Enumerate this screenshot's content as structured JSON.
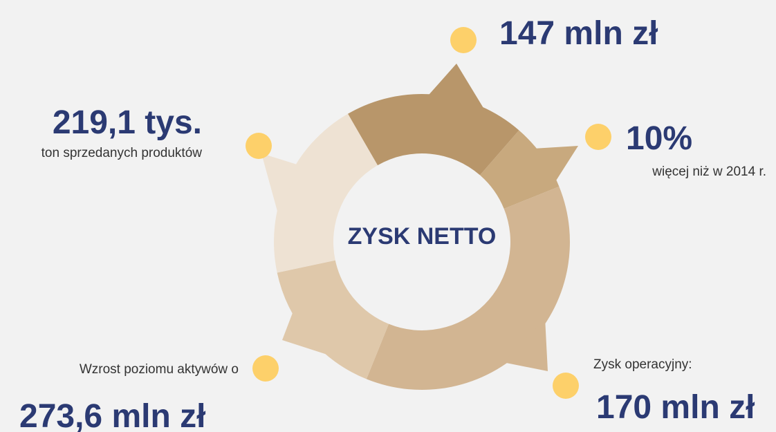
{
  "center_label": "ZYSK NETTO",
  "items": [
    {
      "value": "147 mln zł"
    },
    {
      "value": "10%",
      "caption": "więcej niż w 2014 r."
    },
    {
      "value": "170 mln zł",
      "caption": "Zysk operacyjny:"
    },
    {
      "value": "273,6 mln zł",
      "caption": "Wzrost poziomu aktywów o"
    },
    {
      "value": "219,1 tys.",
      "caption": "ton sprzedanych produktów"
    }
  ]
}
